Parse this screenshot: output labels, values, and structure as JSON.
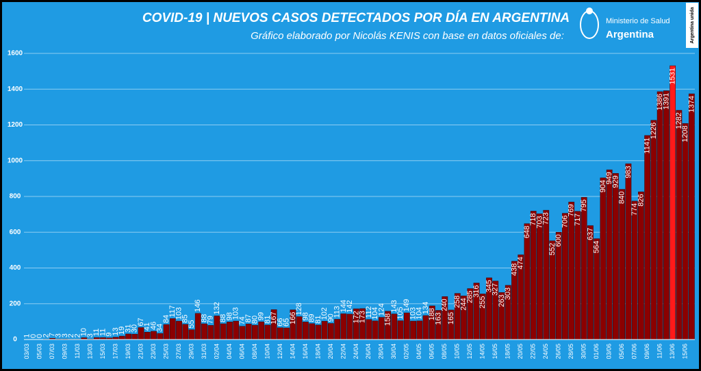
{
  "chart_data": {
    "type": "bar",
    "title": "COVID-19  |  NUEVOS CASOS DETECTADOS POR DÍA EN ARGENTINA",
    "subtitle": "Gráfico elaborado por Nicolás KENIS con base en datos oficiales de:",
    "categories": [
      "03/03",
      null,
      "05/03",
      null,
      "07/03",
      null,
      "09/03",
      null,
      "11/03",
      null,
      "13/03",
      null,
      "15/03",
      null,
      "17/03",
      null,
      "19/03",
      null,
      "21/03",
      null,
      "23/03",
      null,
      "25/03",
      null,
      "27/03",
      null,
      "29/03",
      null,
      "31/03",
      null,
      "02/04",
      null,
      "04/04",
      null,
      "06/04",
      null,
      "08/04",
      null,
      "10/04",
      null,
      "12/04",
      null,
      "14/04",
      null,
      "16/04",
      null,
      "18/04",
      null,
      "20/04",
      null,
      "22/04",
      null,
      "24/04",
      null,
      "26/04",
      null,
      "28/04",
      null,
      "30/04",
      null,
      "02/05",
      null,
      "04/05",
      null,
      "06/05",
      null,
      "08/05",
      null,
      "10/05",
      null,
      "12/05",
      null,
      "14/05",
      null,
      "16/05",
      null,
      "18/05",
      null,
      "20/05",
      null,
      "22/05",
      null,
      "24/05",
      null,
      "26/05",
      null,
      "28/05",
      null,
      "30/05",
      null,
      "01/06",
      null,
      "03/06",
      null,
      "05/06",
      null,
      "07/06",
      null,
      "09/06",
      null,
      "11/06",
      null,
      "13/06",
      null,
      "15/06",
      null
    ],
    "values": [
      1,
      0,
      0,
      2,
      7,
      3,
      3,
      2,
      2,
      10,
      3,
      11,
      11,
      9,
      13,
      19,
      31,
      30,
      67,
      41,
      46,
      34,
      84,
      117,
      103,
      85,
      55,
      146,
      88,
      79,
      132,
      88,
      98,
      103,
      74,
      87,
      80,
      99,
      81,
      167,
      66,
      65,
      166,
      128,
      98,
      89,
      81,
      102,
      90,
      113,
      144,
      142,
      172,
      173,
      112,
      104,
      124,
      158,
      143,
      105,
      149,
      103,
      104,
      134,
      188,
      163,
      240,
      165,
      258,
      244,
      285,
      316,
      255,
      345,
      327,
      263,
      303,
      438,
      474,
      648,
      718,
      703,
      723,
      552,
      600,
      706,
      769,
      717,
      795,
      637,
      564,
      904,
      949,
      929,
      840,
      983,
      774,
      826,
      1141,
      1226,
      1386,
      1391,
      1531,
      1282,
      1208,
      1374
    ],
    "color": "#8b0000",
    "highlight_color": "#ff1a1a",
    "highlight_category": "13/06",
    "ylim": [
      0,
      1600
    ],
    "yticks": [
      0,
      200,
      400,
      600,
      800,
      1000,
      1200,
      1400,
      1600
    ],
    "grid": true
  },
  "logo": {
    "line1": "Ministerio de Salud",
    "line2": "Argentina",
    "badge": "Argentina unida"
  }
}
